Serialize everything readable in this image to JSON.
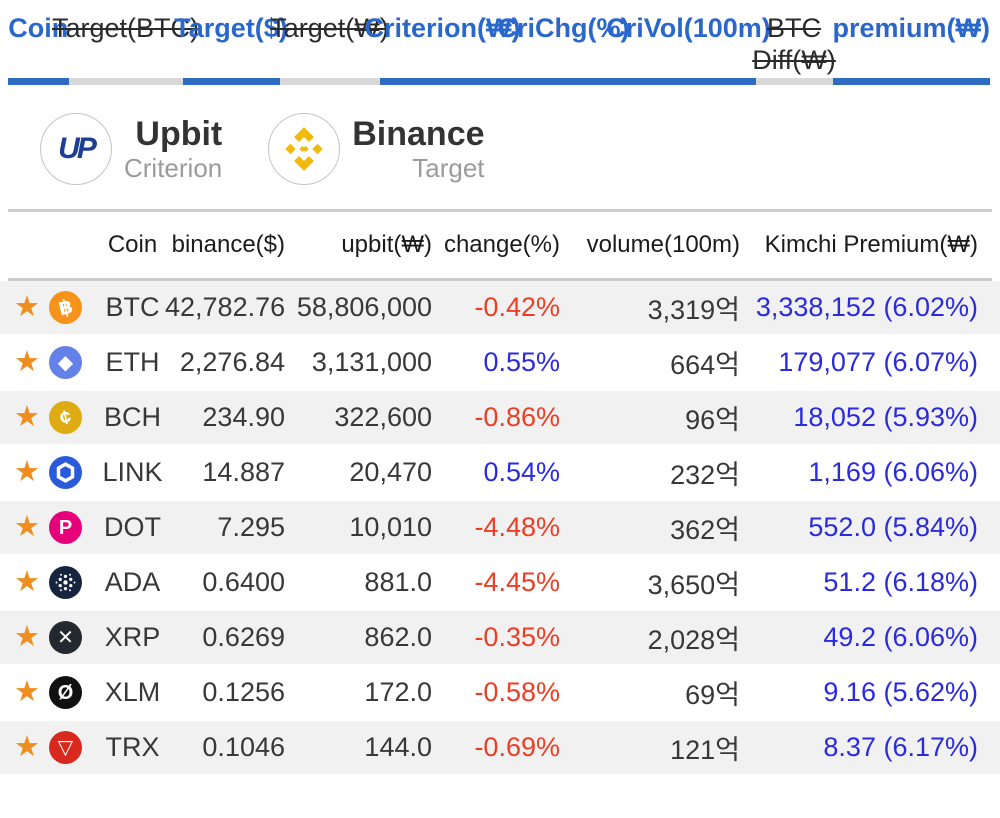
{
  "tabs": [
    {
      "label": "Coin",
      "active": true
    },
    {
      "label": "Target(BTC)",
      "active": false
    },
    {
      "label": "Target($)",
      "active": true
    },
    {
      "label": "Target(₩)",
      "active": false
    },
    {
      "label": "Criterion(₩)",
      "active": true
    },
    {
      "label": "CriChg(%)",
      "active": true
    },
    {
      "label": "CriVol(100m)",
      "active": true
    },
    {
      "label": "BTC Diff(₩)",
      "active": false,
      "lines": [
        "BTC",
        "Diff(₩)"
      ]
    },
    {
      "label": "premium(₩)",
      "active": true
    }
  ],
  "exchanges": [
    {
      "name": "Upbit",
      "role": "Criterion",
      "badge": "UP"
    },
    {
      "name": "Binance",
      "role": "Target"
    }
  ],
  "table": {
    "headers": [
      "Coin",
      "binance($)",
      "upbit(₩)",
      "change(%)",
      "volume(100m)",
      "Kimchi Premium(₩)"
    ],
    "rows": [
      {
        "coin": "BTC",
        "binance": "42,782.76",
        "upbit": "58,806,000",
        "change": "-0.42%",
        "volume": "3,319억",
        "premium": "3,338,152 (6.02%)",
        "icon": "bitcoin-icon",
        "icon_shape": "glyph",
        "icon_glyph": "฿",
        "icon_tilt": true,
        "icon_color": "#f7931a"
      },
      {
        "coin": "ETH",
        "binance": "2,276.84",
        "upbit": "3,131,000",
        "change": "0.55%",
        "volume": "664억",
        "premium": "179,077 (6.07%)",
        "icon": "ethereum-icon",
        "icon_shape": "glyph",
        "icon_glyph": "◆",
        "icon_tilt": false,
        "icon_color": "#6481e7"
      },
      {
        "coin": "BCH",
        "binance": "234.90",
        "upbit": "322,600",
        "change": "-0.86%",
        "volume": "96억",
        "premium": "18,052 (5.93%)",
        "icon": "bitcoin-cash-icon",
        "icon_shape": "glyph",
        "icon_glyph": "¢",
        "icon_tilt": true,
        "icon_color": "#dfab12"
      },
      {
        "coin": "LINK",
        "binance": "14.887",
        "upbit": "20,470",
        "change": "0.54%",
        "volume": "232억",
        "premium": "1,169 (6.06%)",
        "icon": "chainlink-icon",
        "icon_shape": "hexagon",
        "icon_glyph": "",
        "icon_tilt": false,
        "icon_color": "#2a5ada"
      },
      {
        "coin": "DOT",
        "binance": "7.295",
        "upbit": "10,010",
        "change": "-4.48%",
        "volume": "362억",
        "premium": "552.0 (5.84%)",
        "icon": "polkadot-icon",
        "icon_shape": "glyph",
        "icon_glyph": "P",
        "icon_tilt": false,
        "icon_color": "#e6007a"
      },
      {
        "coin": "ADA",
        "binance": "0.6400",
        "upbit": "881.0",
        "change": "-4.45%",
        "volume": "3,650억",
        "premium": "51.2 (6.18%)",
        "icon": "cardano-icon",
        "icon_shape": "dots",
        "icon_glyph": "",
        "icon_tilt": false,
        "icon_color": "#16243d"
      },
      {
        "coin": "XRP",
        "binance": "0.6269",
        "upbit": "862.0",
        "change": "-0.35%",
        "volume": "2,028억",
        "premium": "49.2 (6.06%)",
        "icon": "xrp-icon",
        "icon_shape": "glyph",
        "icon_glyph": "✕",
        "icon_tilt": false,
        "icon_color": "#23292f"
      },
      {
        "coin": "XLM",
        "binance": "0.1256",
        "upbit": "172.0",
        "change": "-0.58%",
        "volume": "69억",
        "premium": "9.16 (5.62%)",
        "icon": "stellar-icon",
        "icon_shape": "glyph",
        "icon_glyph": "Ø",
        "icon_tilt": false,
        "icon_color": "#111111"
      },
      {
        "coin": "TRX",
        "binance": "0.1046",
        "upbit": "144.0",
        "change": "-0.69%",
        "volume": "121억",
        "premium": "8.37 (6.17%)",
        "icon": "tron-icon",
        "icon_shape": "glyph",
        "icon_glyph": "▽",
        "icon_tilt": false,
        "icon_color": "#d9281e"
      }
    ]
  },
  "colors": {
    "accent_blue": "#2a67cd",
    "active_bar_blue": "#2e6cc2",
    "inactive_bar_gray": "#d8d8d8",
    "positive_blue": "#2a2ae0",
    "negative_red": "#ee3d23",
    "star_orange": "#ef8d1e",
    "divider_gray": "#cccccc",
    "row_alt_bg": "#f1f1f1",
    "binance_gold": "#f0b90b",
    "upbit_navy": "#1e3e96"
  }
}
